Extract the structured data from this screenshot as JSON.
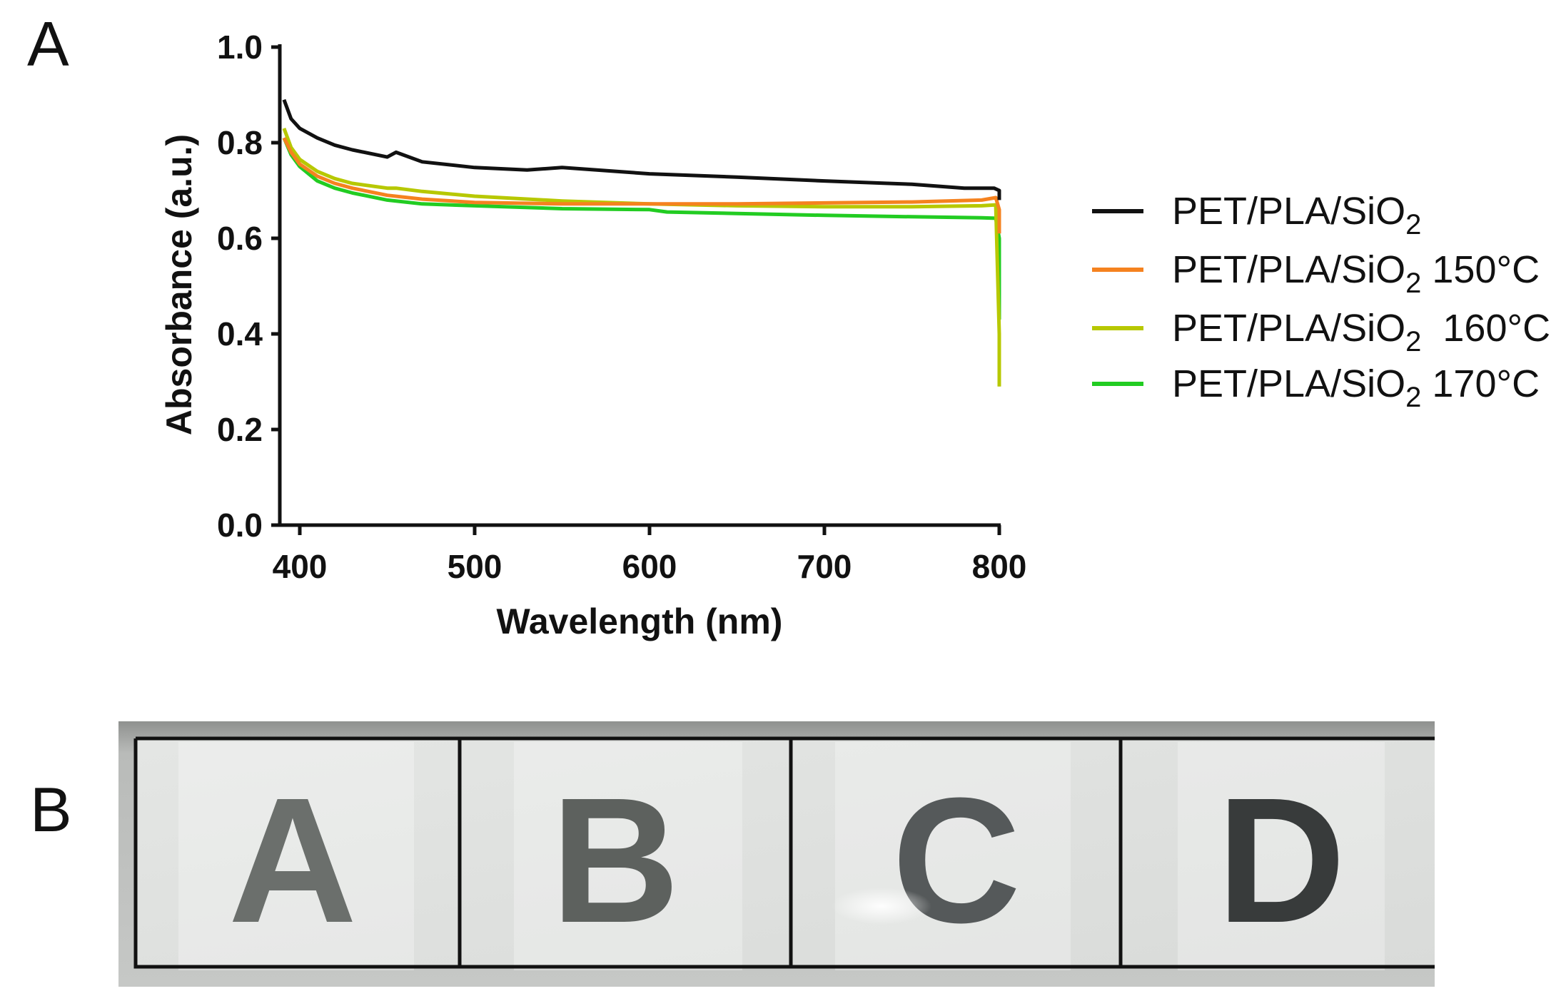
{
  "panels": {
    "a_label": "A",
    "b_label": "B"
  },
  "chart_data": {
    "type": "line",
    "title": "",
    "xlabel": "Wavelength (nm)",
    "ylabel": "Absorbance (a.u.)",
    "xlim": [
      390,
      800
    ],
    "ylim": [
      0.0,
      1.0
    ],
    "x_ticks": [
      400,
      500,
      600,
      700,
      800
    ],
    "x_tick_labels": [
      "400",
      "500",
      "600",
      "700",
      "800"
    ],
    "y_ticks": [
      0.0,
      0.2,
      0.4,
      0.6,
      0.8,
      1.0
    ],
    "y_tick_labels": [
      "0.0",
      "0.2",
      "0.4",
      "0.6",
      "0.8",
      "1.0"
    ],
    "grid": false,
    "legend_position": "right",
    "series": [
      {
        "name": "PET/PLA/SiO2",
        "label_main": "PET/PLA/SiO",
        "label_sub": "2",
        "label_suffix": "",
        "color": "#111111",
        "x": [
          391,
          395,
          400,
          410,
          420,
          430,
          450,
          455,
          470,
          500,
          530,
          550,
          600,
          650,
          700,
          750,
          780,
          797,
          800,
          800
        ],
        "y": [
          0.89,
          0.85,
          0.83,
          0.81,
          0.795,
          0.785,
          0.77,
          0.78,
          0.76,
          0.748,
          0.743,
          0.748,
          0.735,
          0.728,
          0.72,
          0.713,
          0.705,
          0.705,
          0.7,
          0.68
        ]
      },
      {
        "name": "PET/PLA/SiO2 150°C",
        "label_main": "PET/PLA/SiO",
        "label_sub": "2",
        "label_suffix": " 150°C",
        "color": "#F5821F",
        "x": [
          391,
          395,
          400,
          410,
          420,
          430,
          450,
          470,
          500,
          550,
          600,
          650,
          700,
          750,
          790,
          798,
          800,
          800
        ],
        "y": [
          0.81,
          0.78,
          0.755,
          0.73,
          0.715,
          0.705,
          0.69,
          0.682,
          0.675,
          0.672,
          0.672,
          0.672,
          0.674,
          0.676,
          0.68,
          0.685,
          0.66,
          0.61
        ]
      },
      {
        "name": "PET/PLA/SiO2  160°C",
        "label_main": "PET/PLA/SiO",
        "label_sub": "2",
        "label_suffix": "  160°C",
        "color": "#B7C800",
        "x": [
          391,
          395,
          400,
          410,
          420,
          430,
          450,
          455,
          470,
          500,
          550,
          600,
          650,
          700,
          750,
          790,
          798,
          800,
          800
        ],
        "y": [
          0.83,
          0.79,
          0.765,
          0.74,
          0.725,
          0.715,
          0.705,
          0.705,
          0.698,
          0.688,
          0.678,
          0.672,
          0.668,
          0.666,
          0.666,
          0.668,
          0.67,
          0.4,
          0.29
        ]
      },
      {
        "name": "PET/PLA/SiO2 170°C",
        "label_main": "PET/PLA/SiO",
        "label_sub": "2",
        "label_suffix": " 170°C",
        "color": "#22CC22",
        "x": [
          391,
          395,
          400,
          410,
          420,
          430,
          450,
          470,
          500,
          550,
          600,
          610,
          650,
          700,
          750,
          790,
          798,
          800,
          800
        ],
        "y": [
          0.81,
          0.775,
          0.75,
          0.72,
          0.705,
          0.695,
          0.68,
          0.672,
          0.668,
          0.662,
          0.66,
          0.655,
          0.652,
          0.648,
          0.645,
          0.643,
          0.642,
          0.6,
          0.43
        ]
      }
    ]
  },
  "photo": {
    "cells": [
      {
        "letter": "A",
        "color": "#6b6f6c"
      },
      {
        "letter": "B",
        "color": "#5d615e"
      },
      {
        "letter": "C",
        "color": "#55595a"
      },
      {
        "letter": "D",
        "color": "#383b3b"
      }
    ]
  }
}
